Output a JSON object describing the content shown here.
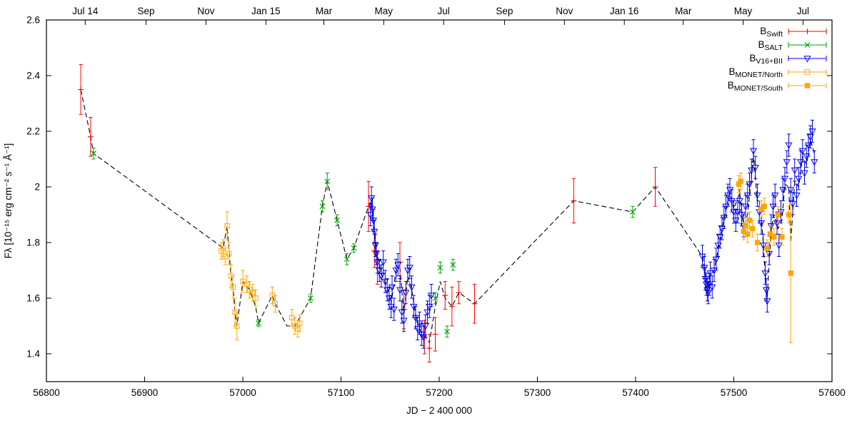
{
  "chart_data": {
    "type": "scatter",
    "title": "",
    "xlabel": "JD − 2 400 000",
    "ylabel": "Fλ [10⁻¹⁵ erg cm⁻² s⁻¹ Å⁻¹]",
    "xlim": [
      56800,
      57600
    ],
    "ylim": [
      1.3,
      2.6
    ],
    "x_ticks": [
      56800,
      56900,
      57000,
      57100,
      57200,
      57300,
      57400,
      57500,
      57600
    ],
    "y_ticks": [
      1.4,
      1.6,
      1.8,
      2.0,
      2.2,
      2.4,
      2.6
    ],
    "y_tick_labels": [
      "1.4",
      "1.6",
      "1.8",
      "2",
      "2.2",
      "2.4",
      "2.6"
    ],
    "top_axis": [
      {
        "jd": 56839.5,
        "label": "Jul 14"
      },
      {
        "jd": 56901.5,
        "label": "Sep"
      },
      {
        "jd": 56962.5,
        "label": "Nov"
      },
      {
        "jd": 57023.5,
        "label": "Jan 15"
      },
      {
        "jd": 57082.5,
        "label": "Mar"
      },
      {
        "jd": 57143.5,
        "label": "May"
      },
      {
        "jd": 57204.5,
        "label": "Jul"
      },
      {
        "jd": 57266.5,
        "label": "Sep"
      },
      {
        "jd": 57327.5,
        "label": "Nov"
      },
      {
        "jd": 57388.5,
        "label": "Jan 16"
      },
      {
        "jd": 57448.5,
        "label": "Mar"
      },
      {
        "jd": 57509.5,
        "label": "May"
      },
      {
        "jd": 57570.5,
        "label": "Jul"
      }
    ],
    "legend": [
      {
        "prefix": "B",
        "sub": "Swift",
        "series": "swift"
      },
      {
        "prefix": "B",
        "sub": "SALT",
        "series": "salt"
      },
      {
        "prefix": "B",
        "sub": "V16+BII",
        "series": "v16"
      },
      {
        "prefix": "B",
        "sub": "MONET/North",
        "series": "monet_north"
      },
      {
        "prefix": "B",
        "sub": "MONET/South",
        "series": "monet_south"
      }
    ],
    "dashed_line": [
      [
        56835,
        2.35
      ],
      [
        56845,
        2.18
      ],
      [
        56848,
        2.12
      ],
      [
        56980,
        1.78
      ],
      [
        56984,
        1.86
      ],
      [
        56988,
        1.68
      ],
      [
        56990,
        1.64
      ],
      [
        56992,
        1.55
      ],
      [
        56994,
        1.5
      ],
      [
        57000,
        1.66
      ],
      [
        57007,
        1.63
      ],
      [
        57013,
        1.57
      ],
      [
        57016,
        1.51
      ],
      [
        57030,
        1.61
      ],
      [
        57033,
        1.58
      ],
      [
        57045,
        1.5
      ],
      [
        57053,
        1.5
      ],
      [
        57058,
        1.53
      ],
      [
        57069,
        1.6
      ],
      [
        57081,
        1.93
      ],
      [
        57086,
        2.02
      ],
      [
        57096,
        1.88
      ],
      [
        57106,
        1.74
      ],
      [
        57113,
        1.78
      ],
      [
        57128,
        1.93
      ],
      [
        57131,
        1.95
      ],
      [
        57136,
        1.77
      ],
      [
        57141,
        1.69
      ],
      [
        57147,
        1.64
      ],
      [
        57151,
        1.58
      ],
      [
        57156,
        1.7
      ],
      [
        57160,
        1.71
      ],
      [
        57164,
        1.54
      ],
      [
        57168,
        1.68
      ],
      [
        57172,
        1.63
      ],
      [
        57176,
        1.54
      ],
      [
        57182,
        1.47
      ],
      [
        57186,
        1.46
      ],
      [
        57190,
        1.44
      ],
      [
        57196,
        1.57
      ],
      [
        57201,
        1.66
      ],
      [
        57206,
        1.6
      ],
      [
        57213,
        1.57
      ],
      [
        57220,
        1.62
      ],
      [
        57236,
        1.58
      ],
      [
        57337,
        1.95
      ],
      [
        57397,
        1.91
      ],
      [
        57420,
        2.0
      ],
      [
        57468,
        1.75
      ],
      [
        57473,
        1.64
      ],
      [
        57476,
        1.68
      ],
      [
        57480,
        1.7
      ],
      [
        57486,
        1.81
      ],
      [
        57492,
        1.92
      ],
      [
        57496,
        1.98
      ],
      [
        57500,
        1.92
      ],
      [
        57506,
        1.98
      ],
      [
        57510,
        1.85
      ],
      [
        57514,
        1.9
      ],
      [
        57518,
        2.04
      ],
      [
        57520,
        2.12
      ],
      [
        57524,
        1.94
      ],
      [
        57528,
        1.9
      ],
      [
        57532,
        1.69
      ],
      [
        57534,
        1.6
      ],
      [
        57538,
        1.85
      ],
      [
        57541,
        1.9
      ],
      [
        57545,
        1.85
      ],
      [
        57549,
        1.88
      ],
      [
        57552,
        2.01
      ],
      [
        57556,
        2.0
      ],
      [
        57558,
        1.8
      ],
      [
        57562,
        2.02
      ],
      [
        57566,
        2.0
      ],
      [
        57570,
        2.11
      ],
      [
        57574,
        2.08
      ],
      [
        57578,
        2.17
      ],
      [
        57582,
        2.12
      ]
    ],
    "series": [
      {
        "name": "swift",
        "marker": "plus",
        "color": "#ff0000",
        "points": [
          [
            56835,
            2.35,
            0.09
          ],
          [
            56845,
            2.18,
            0.07
          ],
          [
            57128,
            1.93,
            0.09
          ],
          [
            57134,
            1.77,
            0.06
          ],
          [
            57137,
            1.71,
            0.06
          ],
          [
            57160,
            1.73,
            0.07
          ],
          [
            57164,
            1.56,
            0.07
          ],
          [
            57185,
            1.46,
            0.06
          ],
          [
            57190,
            1.42,
            0.05
          ],
          [
            57196,
            1.47,
            0.06
          ],
          [
            57206,
            1.61,
            0.05
          ],
          [
            57213,
            1.57,
            0.07
          ],
          [
            57220,
            1.62,
            0.04
          ],
          [
            57236,
            1.58,
            0.07
          ],
          [
            57337,
            1.95,
            0.08
          ],
          [
            57420,
            2.0,
            0.07
          ]
        ]
      },
      {
        "name": "salt",
        "marker": "x",
        "color": "#00a000",
        "points": [
          [
            56848,
            2.12,
            0.02
          ],
          [
            57016,
            1.51,
            0.012
          ],
          [
            57069,
            1.6,
            0.015
          ],
          [
            57081,
            1.93,
            0.02
          ],
          [
            57086,
            2.02,
            0.03
          ],
          [
            57096,
            1.88,
            0.02
          ],
          [
            57106,
            1.74,
            0.02
          ],
          [
            57113,
            1.78,
            0.015
          ],
          [
            57196,
            1.6,
            0.02
          ],
          [
            57201,
            1.71,
            0.02
          ],
          [
            57208,
            1.48,
            0.02
          ],
          [
            57214,
            1.72,
            0.02
          ],
          [
            57397,
            1.91,
            0.02
          ]
        ]
      },
      {
        "name": "v16",
        "marker": "triangle-down",
        "color": "#0000ee",
        "points": [
          [
            57130,
            1.9,
            0.04
          ],
          [
            57131,
            1.96,
            0.04
          ],
          [
            57132,
            1.92,
            0.04
          ],
          [
            57133,
            1.88,
            0.04
          ],
          [
            57134,
            1.84,
            0.04
          ],
          [
            57135,
            1.79,
            0.04
          ],
          [
            57136,
            1.76,
            0.04
          ],
          [
            57137,
            1.73,
            0.04
          ],
          [
            57139,
            1.7,
            0.04
          ],
          [
            57141,
            1.68,
            0.04
          ],
          [
            57143,
            1.73,
            0.04
          ],
          [
            57145,
            1.66,
            0.04
          ],
          [
            57147,
            1.63,
            0.04
          ],
          [
            57149,
            1.6,
            0.04
          ],
          [
            57151,
            1.57,
            0.04
          ],
          [
            57152,
            1.64,
            0.04
          ],
          [
            57154,
            1.56,
            0.04
          ],
          [
            57156,
            1.7,
            0.04
          ],
          [
            57158,
            1.72,
            0.04
          ],
          [
            57160,
            1.63,
            0.04
          ],
          [
            57162,
            1.55,
            0.04
          ],
          [
            57164,
            1.52,
            0.04
          ],
          [
            57166,
            1.62,
            0.04
          ],
          [
            57168,
            1.7,
            0.04
          ],
          [
            57170,
            1.71,
            0.04
          ],
          [
            57172,
            1.64,
            0.04
          ],
          [
            57174,
            1.57,
            0.04
          ],
          [
            57176,
            1.53,
            0.04
          ],
          [
            57178,
            1.49,
            0.04
          ],
          [
            57180,
            1.51,
            0.04
          ],
          [
            57182,
            1.47,
            0.04
          ],
          [
            57184,
            1.46,
            0.04
          ],
          [
            57186,
            1.5,
            0.04
          ],
          [
            57188,
            1.55,
            0.04
          ],
          [
            57190,
            1.57,
            0.04
          ],
          [
            57192,
            1.61,
            0.04
          ],
          [
            57468,
            1.75,
            0.04
          ],
          [
            57470,
            1.71,
            0.04
          ],
          [
            57471,
            1.67,
            0.04
          ],
          [
            57472,
            1.65,
            0.04
          ],
          [
            57473,
            1.63,
            0.04
          ],
          [
            57474,
            1.62,
            0.04
          ],
          [
            57475,
            1.65,
            0.04
          ],
          [
            57476,
            1.69,
            0.04
          ],
          [
            57478,
            1.64,
            0.04
          ],
          [
            57480,
            1.7,
            0.04
          ],
          [
            57482,
            1.74,
            0.04
          ],
          [
            57484,
            1.79,
            0.04
          ],
          [
            57486,
            1.82,
            0.04
          ],
          [
            57488,
            1.85,
            0.04
          ],
          [
            57490,
            1.89,
            0.04
          ],
          [
            57492,
            1.93,
            0.04
          ],
          [
            57494,
            1.97,
            0.04
          ],
          [
            57496,
            1.99,
            0.04
          ],
          [
            57498,
            1.95,
            0.04
          ],
          [
            57500,
            1.91,
            0.04
          ],
          [
            57502,
            1.88,
            0.04
          ],
          [
            57504,
            1.91,
            0.04
          ],
          [
            57506,
            1.95,
            0.04
          ],
          [
            57508,
            1.9,
            0.04
          ],
          [
            57510,
            1.86,
            0.04
          ],
          [
            57512,
            1.93,
            0.04
          ],
          [
            57514,
            1.97,
            0.04
          ],
          [
            57516,
            2.01,
            0.04
          ],
          [
            57518,
            2.06,
            0.04
          ],
          [
            57520,
            2.13,
            0.04
          ],
          [
            57522,
            2.07,
            0.04
          ],
          [
            57524,
            1.97,
            0.04
          ],
          [
            57526,
            1.91,
            0.04
          ],
          [
            57528,
            1.87,
            0.04
          ],
          [
            57530,
            1.79,
            0.04
          ],
          [
            57532,
            1.69,
            0.04
          ],
          [
            57533,
            1.63,
            0.04
          ],
          [
            57534,
            1.59,
            0.04
          ],
          [
            57536,
            1.76,
            0.04
          ],
          [
            57538,
            1.86,
            0.04
          ],
          [
            57540,
            1.93,
            0.04
          ],
          [
            57542,
            1.97,
            0.04
          ],
          [
            57544,
            1.87,
            0.04
          ],
          [
            57546,
            1.79,
            0.04
          ],
          [
            57548,
            1.91,
            0.04
          ],
          [
            57550,
            1.99,
            0.04
          ],
          [
            57552,
            2.03,
            0.04
          ],
          [
            57554,
            2.09,
            0.04
          ],
          [
            57556,
            2.15,
            0.04
          ],
          [
            57558,
            1.99,
            0.04
          ],
          [
            57560,
            1.94,
            0.04
          ],
          [
            57562,
            2.06,
            0.04
          ],
          [
            57564,
            1.97,
            0.04
          ],
          [
            57566,
            2.03,
            0.04
          ],
          [
            57568,
            2.09,
            0.04
          ],
          [
            57570,
            2.13,
            0.04
          ],
          [
            57572,
            2.05,
            0.04
          ],
          [
            57574,
            2.11,
            0.04
          ],
          [
            57576,
            2.15,
            0.04
          ],
          [
            57578,
            2.18,
            0.04
          ],
          [
            57580,
            2.2,
            0.04
          ],
          [
            57582,
            2.09,
            0.04
          ]
        ]
      },
      {
        "name": "monet_north",
        "marker": "square-open",
        "color": "#ffa500",
        "points": [
          [
            56978,
            1.77,
            0.03
          ],
          [
            56980,
            1.78,
            0.03
          ],
          [
            56982,
            1.75,
            0.03
          ],
          [
            56984,
            1.86,
            0.05
          ],
          [
            56986,
            1.76,
            0.04
          ],
          [
            56988,
            1.68,
            0.04
          ],
          [
            56990,
            1.64,
            0.04
          ],
          [
            56992,
            1.55,
            0.05
          ],
          [
            56994,
            1.5,
            0.05
          ],
          [
            57000,
            1.66,
            0.04
          ],
          [
            57004,
            1.65,
            0.03
          ],
          [
            57007,
            1.63,
            0.03
          ],
          [
            57010,
            1.62,
            0.03
          ],
          [
            57013,
            1.6,
            0.03
          ],
          [
            57030,
            1.61,
            0.03
          ],
          [
            57033,
            1.58,
            0.03
          ],
          [
            57050,
            1.53,
            0.03
          ],
          [
            57053,
            1.5,
            0.03
          ],
          [
            57056,
            1.49,
            0.03
          ],
          [
            57058,
            1.51,
            0.03
          ]
        ]
      },
      {
        "name": "monet_south",
        "marker": "square-filled",
        "color": "#ffa500",
        "points": [
          [
            57505,
            2.01,
            0.03
          ],
          [
            57507,
            2.02,
            0.03
          ],
          [
            57510,
            1.84,
            0.03
          ],
          [
            57512,
            1.86,
            0.03
          ],
          [
            57514,
            1.83,
            0.03
          ],
          [
            57516,
            1.88,
            0.03
          ],
          [
            57519,
            1.85,
            0.03
          ],
          [
            57524,
            1.8,
            0.03
          ],
          [
            57528,
            1.92,
            0.03
          ],
          [
            57531,
            1.93,
            0.03
          ],
          [
            57534,
            1.78,
            0.03
          ],
          [
            57537,
            1.83,
            0.03
          ],
          [
            57541,
            1.82,
            0.03
          ],
          [
            57545,
            1.9,
            0.03
          ],
          [
            57549,
            1.82,
            0.03
          ],
          [
            57556,
            1.9,
            0.03
          ],
          [
            57558,
            1.69,
            0.25
          ]
        ]
      }
    ]
  }
}
